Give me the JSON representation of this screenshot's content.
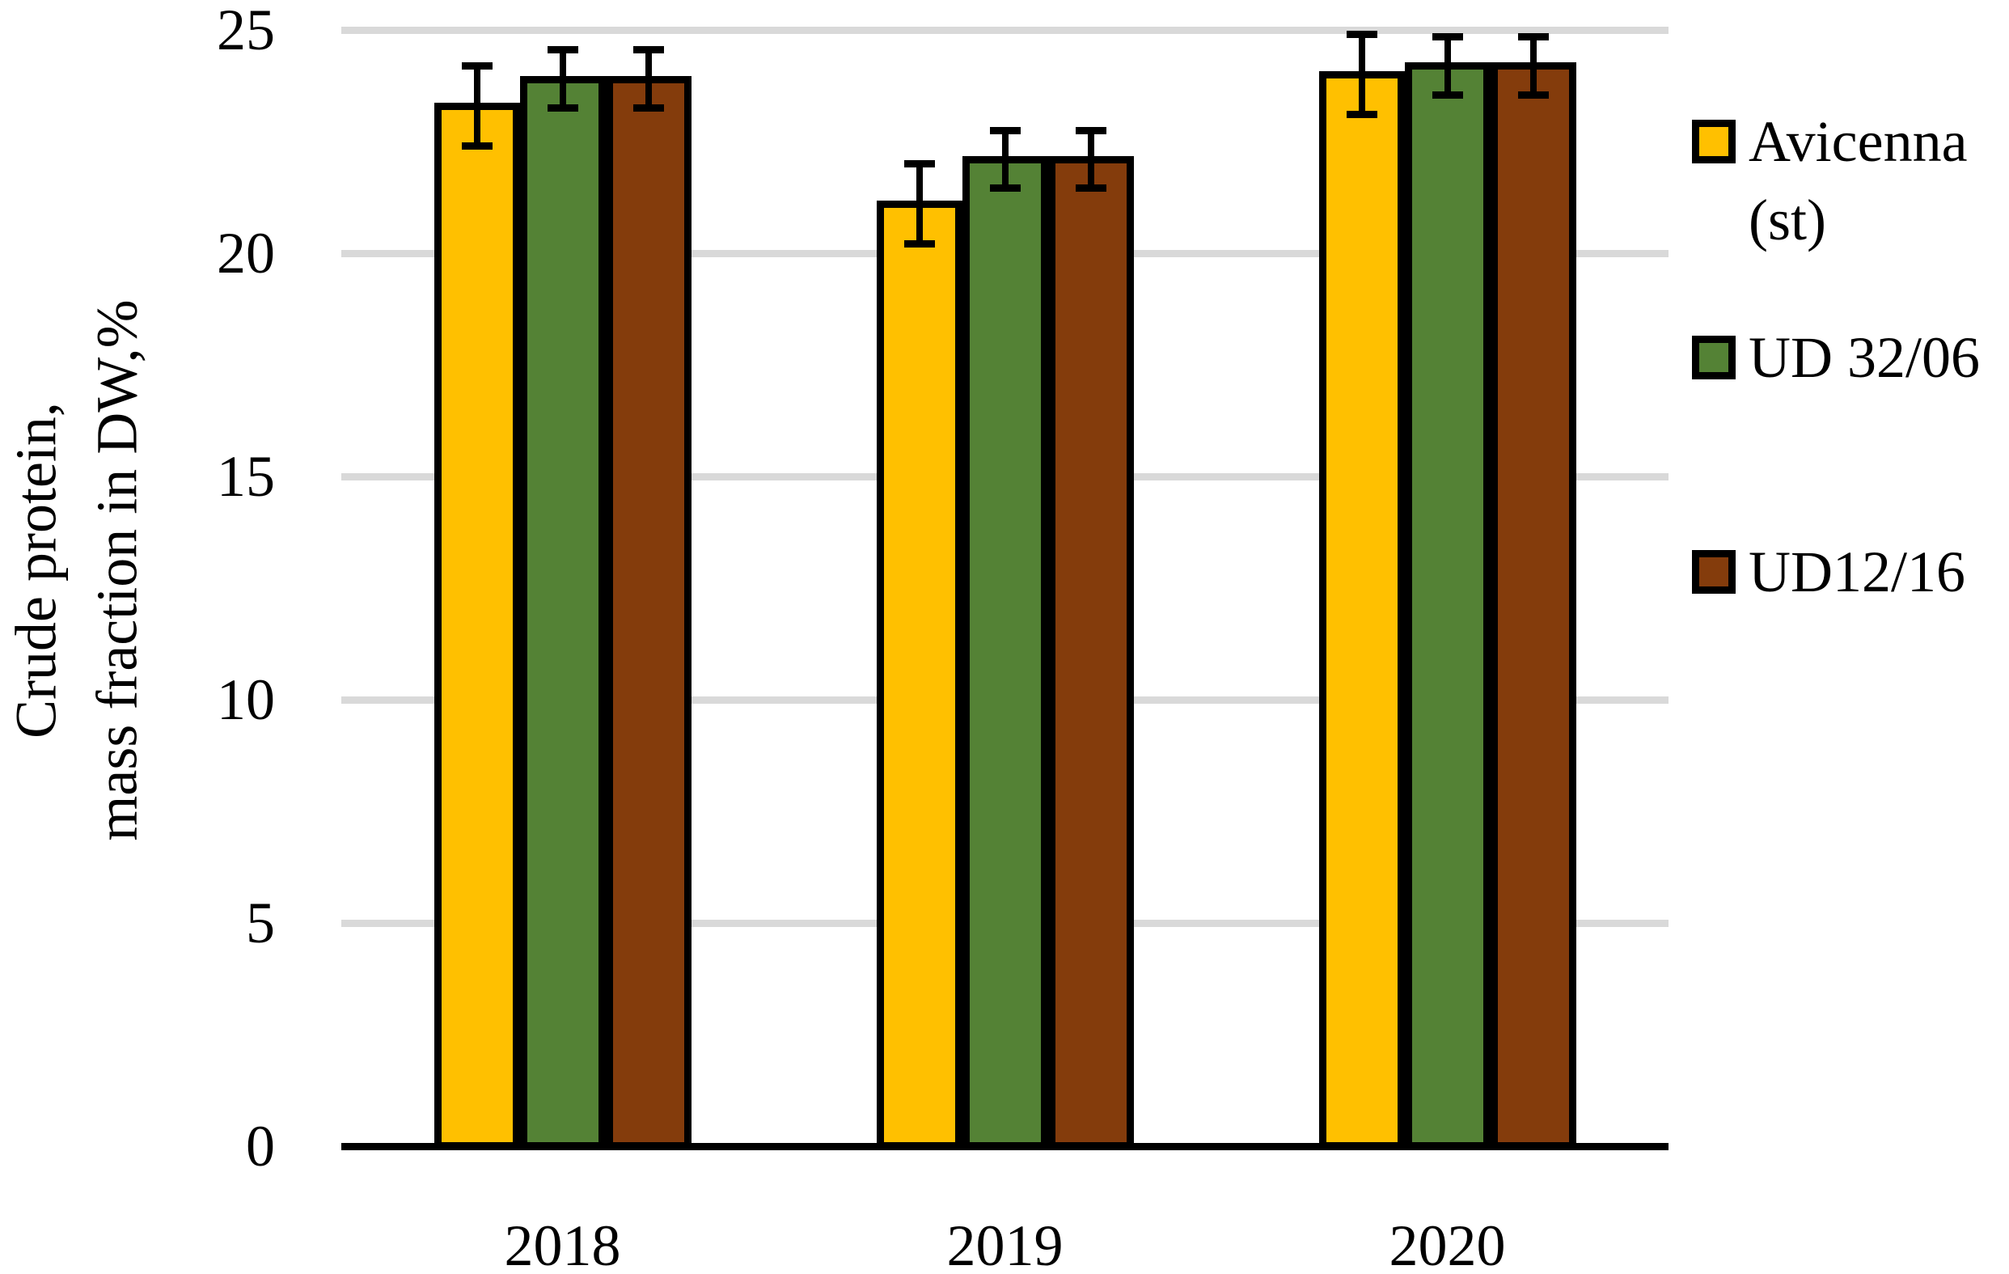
{
  "figure": {
    "background": "#ffffff",
    "text_color": "#000000"
  },
  "chart_data": {
    "type": "bar",
    "title": "",
    "ylabel_lines": [
      "Crude protein,",
      "mass fraction in DW,%"
    ],
    "xlabel": "",
    "categories": [
      "2018",
      "2019",
      "2020"
    ],
    "series": [
      {
        "name": "Avicenna (st)",
        "color": "#FFC000",
        "values": [
          23.3,
          21.1,
          24.0
        ],
        "error": [
          0.9,
          0.9,
          0.9
        ]
      },
      {
        "name": "UD 32/06",
        "color": "#548235",
        "values": [
          23.9,
          22.1,
          24.2
        ],
        "error": [
          0.65,
          0.65,
          0.65
        ]
      },
      {
        "name": "UD12/16",
        "color": "#843C0C",
        "values": [
          23.9,
          22.1,
          24.2
        ],
        "error": [
          0.65,
          0.65,
          0.65
        ]
      }
    ],
    "ylim": [
      0,
      25
    ],
    "yticks": [
      0,
      5,
      10,
      15,
      20,
      25
    ],
    "grid": "horizontal",
    "gridline_color": "#D9D9D9",
    "axis_line_color": "#000000",
    "bar_border_color": "#000000",
    "error_bar_color": "#000000",
    "legend_position": "right"
  }
}
